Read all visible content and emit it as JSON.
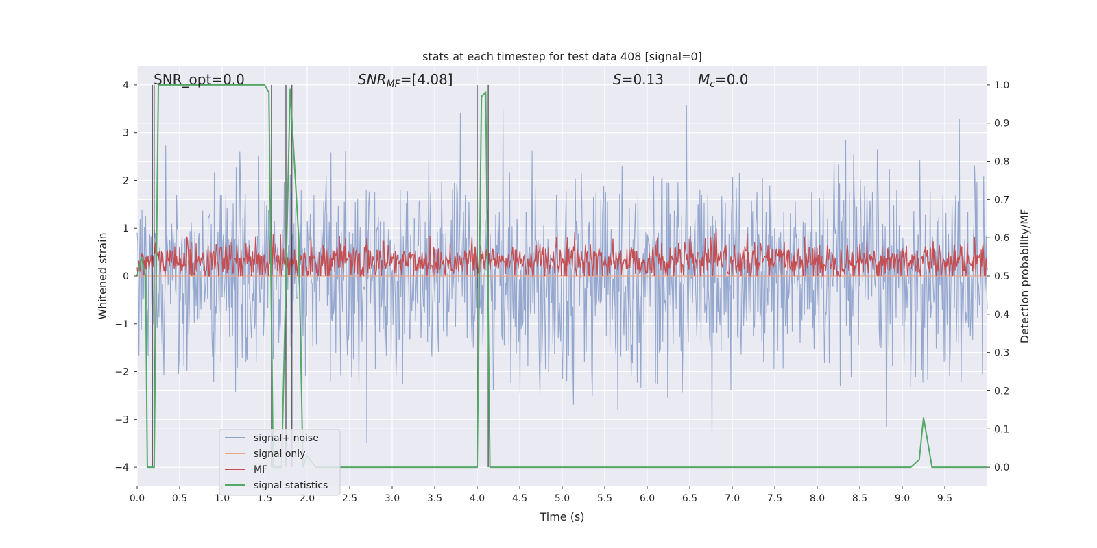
{
  "chart_data": {
    "type": "line",
    "title": "stats at each timestep for test data 408 [signal=0]",
    "xlabel": "Time (s)",
    "ylabel": "Whitened strain",
    "ylabel_right": "Detection probability/MF",
    "xlim": [
      0,
      10
    ],
    "ylim": [
      -4.4,
      4.4
    ],
    "ylim_right": [
      -0.05,
      1.05
    ],
    "x_ticks": [
      0.0,
      0.5,
      1.0,
      1.5,
      2.0,
      2.5,
      3.0,
      3.5,
      4.0,
      4.5,
      5.0,
      5.5,
      6.0,
      6.5,
      7.0,
      7.5,
      8.0,
      8.5,
      9.0,
      9.5
    ],
    "x_tick_labels": [
      "0.0",
      "0.5",
      "1.0",
      "1.5",
      "2.0",
      "2.5",
      "3.0",
      "3.5",
      "4.0",
      "4.5",
      "5.0",
      "5.5",
      "6.0",
      "6.5",
      "7.0",
      "7.5",
      "8.0",
      "8.5",
      "9.0",
      "9.5"
    ],
    "y_ticks": [
      -4,
      -3,
      -2,
      -1,
      0,
      1,
      2,
      3,
      4
    ],
    "y_tick_labels": [
      "−4",
      "−3",
      "−2",
      "−1",
      "0",
      "1",
      "2",
      "3",
      "4"
    ],
    "y_ticks_right": [
      0.0,
      0.1,
      0.2,
      0.3,
      0.4,
      0.5,
      0.6,
      0.7,
      0.8,
      0.9,
      1.0
    ],
    "y_tick_labels_right": [
      "0.0",
      "0.1",
      "0.2",
      "0.3",
      "0.4",
      "0.5",
      "0.6",
      "0.7",
      "0.8",
      "0.9",
      "1.0"
    ],
    "grid": true,
    "legend_position": "lower-left",
    "annotations": {
      "snr_opt": "SNR_opt=0.0",
      "snr_mf_prefix": "SNR",
      "snr_mf_sub": "MF",
      "snr_mf_value": "=[4.08]",
      "s_symbol": "S",
      "s_value": "=0.13",
      "mc_symbol": "M",
      "mc_sub": "c",
      "mc_value": "=0.0"
    },
    "series": [
      {
        "name": "signal+ noise",
        "color": "#8fa3cb",
        "axis": "left",
        "description_values": {
          "envelope_typical": [
            -2.4,
            2.4
          ],
          "envelope_extreme": [
            -4.0,
            3.9
          ]
        }
      },
      {
        "name": "signal only",
        "color": "#e9a489",
        "axis": "left",
        "values": [
          0
        ]
      },
      {
        "name": "MF",
        "color": "#c44e52",
        "axis": "right",
        "description_values": {
          "range": [
            0.5,
            0.62
          ]
        }
      },
      {
        "name": "signal statistics",
        "color": "#55a868",
        "axis": "right",
        "x": [
          0.0,
          0.05,
          0.1,
          0.12,
          0.2,
          0.25,
          1.5,
          1.55,
          1.6,
          1.65,
          1.7,
          1.8,
          1.9,
          1.95,
          2.0,
          2.1,
          4.0,
          4.05,
          4.1,
          4.15,
          9.1,
          9.15,
          9.2,
          9.25,
          9.35,
          10.0
        ],
        "y": [
          0.5,
          0.55,
          0.5,
          0.0,
          0.0,
          1.0,
          1.0,
          0.98,
          0.0,
          0.0,
          0.0,
          0.99,
          0.6,
          0.0,
          0.03,
          0.0,
          0.0,
          0.97,
          0.98,
          0.0,
          0.0,
          0.01,
          0.02,
          0.13,
          0.0,
          0.0
        ]
      }
    ],
    "vertical_markers": [
      0.18,
      0.2,
      1.58,
      1.75,
      1.82,
      4.0,
      4.13
    ]
  }
}
